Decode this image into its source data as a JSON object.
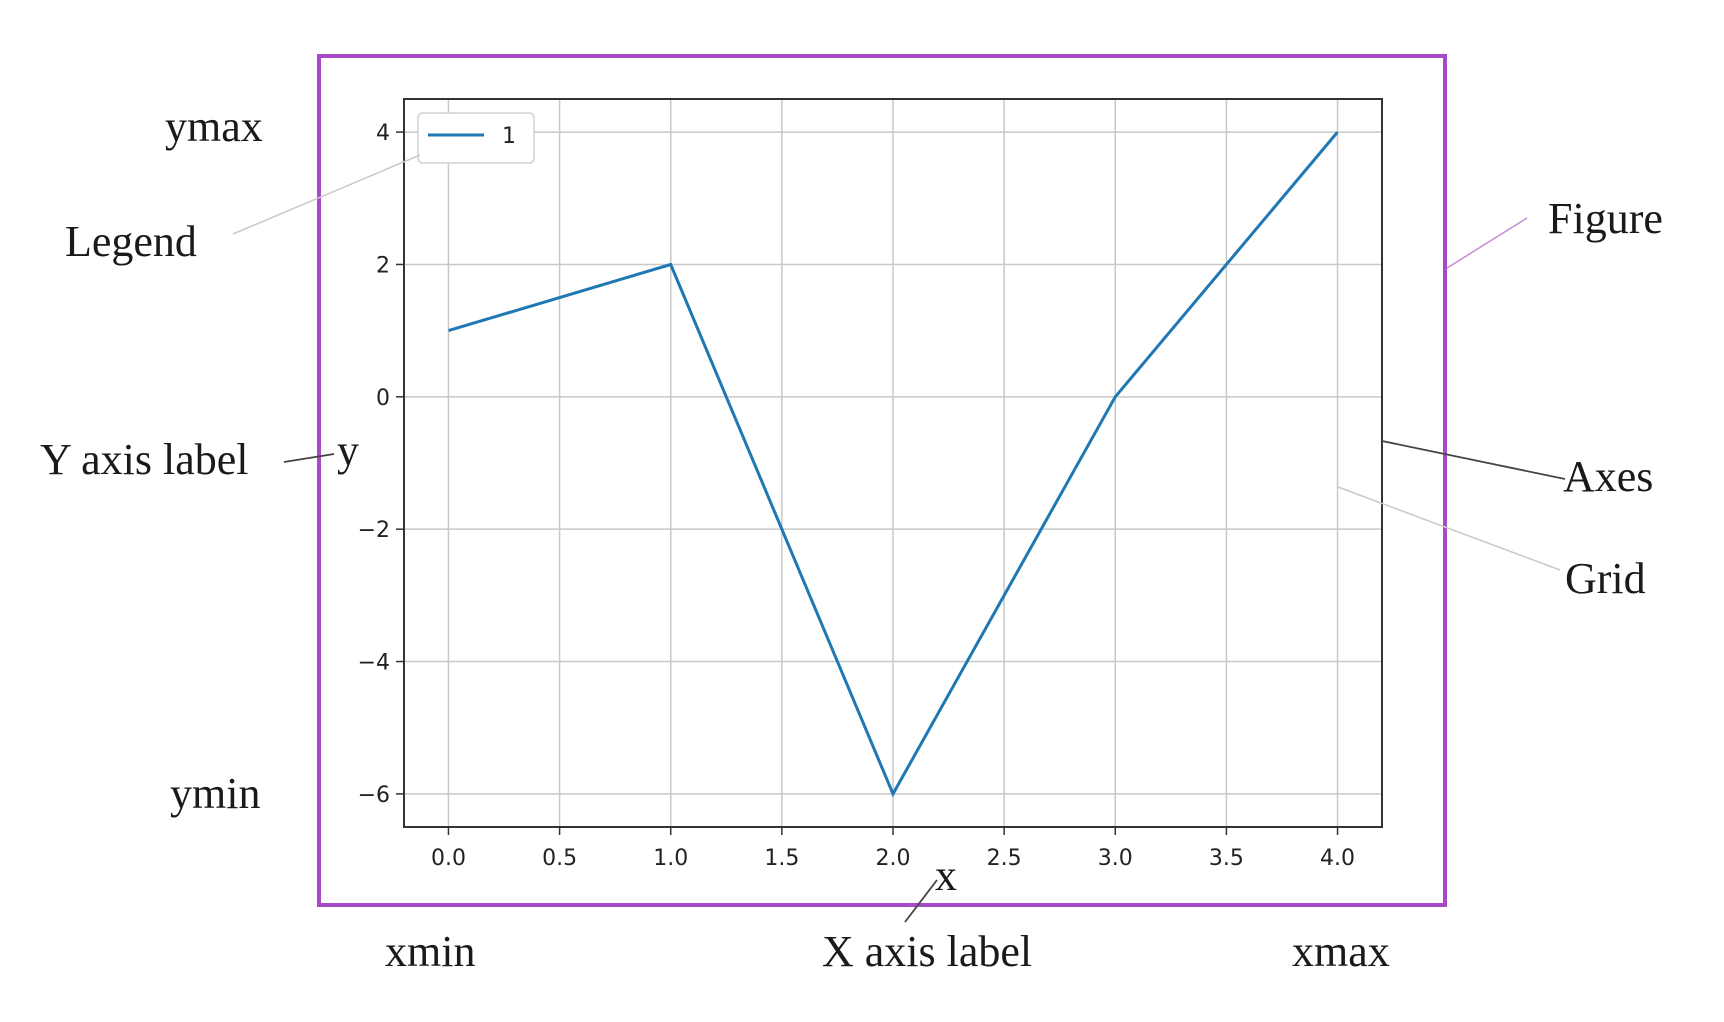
{
  "annotations": {
    "ymax": "ymax",
    "ymin": "ymin",
    "xmin": "xmin",
    "xmax": "xmax",
    "legend": "Legend",
    "y_axis_label": "Y axis label",
    "x_axis_label": "X axis label",
    "figure": "Figure",
    "axes": "Axes",
    "grid": "Grid"
  },
  "colors": {
    "figure_border": "#a64ac9",
    "series_line": "#1f77b4",
    "grid": "#c8c8c8",
    "axes_frame": "#333333",
    "leader_light": "#c9c9c9",
    "leader_dark": "#444444",
    "leader_figure": "#c58bd6"
  },
  "chart_data": {
    "type": "line",
    "x": [
      0,
      1,
      2,
      3,
      4
    ],
    "series": [
      {
        "name": "1",
        "values": [
          1,
          2,
          -6,
          0,
          4
        ]
      }
    ],
    "xlabel": "x",
    "ylabel": "y",
    "xlim": [
      -0.2,
      4.2
    ],
    "ylim": [
      -6.5,
      4.5
    ],
    "xticks": [
      0.0,
      0.5,
      1.0,
      1.5,
      2.0,
      2.5,
      3.0,
      3.5,
      4.0
    ],
    "xtick_labels": [
      "0.0",
      "0.5",
      "1.0",
      "1.5",
      "2.0",
      "2.5",
      "3.0",
      "3.5",
      "4.0"
    ],
    "yticks": [
      4,
      2,
      0,
      -2,
      -4,
      -6
    ],
    "ytick_labels": [
      "4",
      "2",
      "0",
      "−2",
      "−4",
      "−6"
    ],
    "grid": true,
    "legend_position": "top-left"
  }
}
